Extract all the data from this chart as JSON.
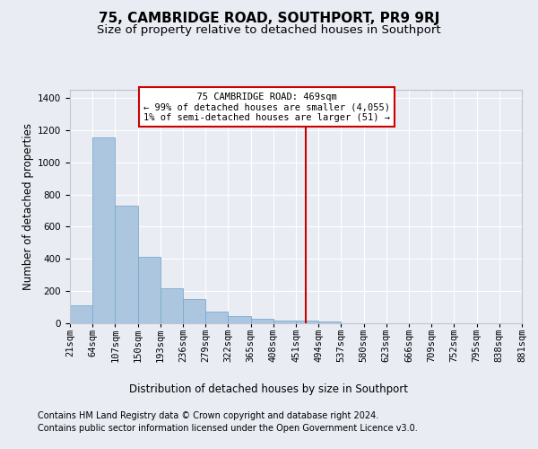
{
  "title": "75, CAMBRIDGE ROAD, SOUTHPORT, PR9 9RJ",
  "subtitle": "Size of property relative to detached houses in Southport",
  "xlabel": "Distribution of detached houses by size in Southport",
  "ylabel": "Number of detached properties",
  "footer_line1": "Contains HM Land Registry data © Crown copyright and database right 2024.",
  "footer_line2": "Contains public sector information licensed under the Open Government Licence v3.0.",
  "hist_counts": [
    110,
    1155,
    730,
    415,
    220,
    150,
    70,
    45,
    30,
    15,
    15,
    10,
    0,
    0,
    0,
    0,
    0,
    0,
    0,
    0
  ],
  "bin_edges": [
    21,
    64,
    107,
    150,
    193,
    236,
    279,
    322,
    365,
    408,
    451,
    494,
    537,
    580,
    623,
    666,
    709,
    752,
    795,
    838,
    881
  ],
  "bar_color": "#adc6e0",
  "bar_edge_color": "#7aabcc",
  "vline_x": 469,
  "vline_color": "#cc0000",
  "annotation_text": "  75 CAMBRIDGE ROAD: 469sqm  \n← 99% of detached houses are smaller (4,055)\n1% of semi-detached houses are larger (51) →",
  "annotation_box_color": "#cc0000",
  "ylim": [
    0,
    1450
  ],
  "yticks": [
    0,
    200,
    400,
    600,
    800,
    1000,
    1200,
    1400
  ],
  "bg_color": "#eaecf4",
  "plot_bg_color": "#eaecf4",
  "grid_color": "#ffffff",
  "title_fontsize": 11,
  "subtitle_fontsize": 9.5,
  "axis_label_fontsize": 8.5,
  "tick_fontsize": 7.5,
  "footer_fontsize": 7
}
